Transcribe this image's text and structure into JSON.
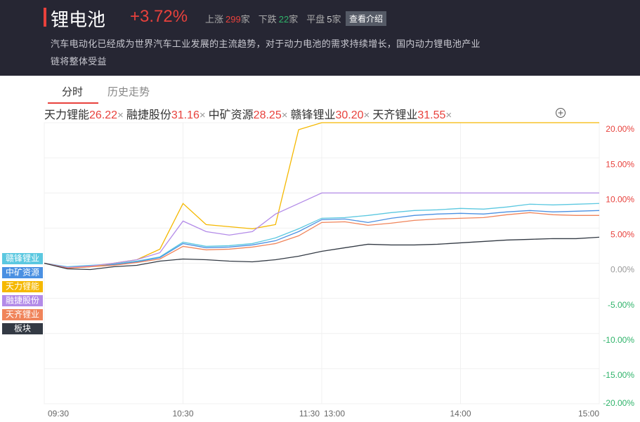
{
  "header": {
    "title": "锂电池",
    "change": "+3.72%",
    "stats": [
      {
        "label": "上涨",
        "count": "299",
        "unit": "家",
        "color": "#e8413c"
      },
      {
        "label": "下跌",
        "count": "22",
        "unit": "家",
        "color": "#2fb36a"
      },
      {
        "label": "平盘",
        "count": "5",
        "unit": "家",
        "color": "#cccccc"
      }
    ],
    "button": "查看介绍",
    "description": "汽车电动化已经成为世界汽车工业发展的主流趋势，对于动力电池的需求持续增长，国内动力锂电池产业链将整体受益"
  },
  "tabs": [
    "分时",
    "历史走势"
  ],
  "chips": [
    {
      "name": "天力锂能",
      "price": "26.22",
      "color": "#f5b800"
    },
    {
      "name": "融捷股份",
      "price": "31.16",
      "color": "#b38be8"
    },
    {
      "name": "中矿资源",
      "price": "28.25",
      "color": "#4a90e2"
    },
    {
      "name": "赣锋锂业",
      "price": "30.20",
      "color": "#5bc8e0"
    },
    {
      "name": "天齐锂业",
      "price": "31.55",
      "color": "#f0845a"
    }
  ],
  "chart_data": {
    "type": "line",
    "x": [
      "09:30",
      "09:40",
      "09:50",
      "10:00",
      "10:10",
      "10:20",
      "10:30",
      "10:40",
      "10:50",
      "11:00",
      "11:10",
      "11:20",
      "11:30",
      "13:10",
      "13:20",
      "13:30",
      "13:40",
      "13:50",
      "14:00",
      "14:10",
      "14:20",
      "14:30",
      "14:40",
      "14:50",
      "15:00"
    ],
    "xticks": [
      "09:30",
      "10:30",
      "11:30",
      "13:00",
      "14:00",
      "15:00"
    ],
    "ylim": [
      -20,
      20
    ],
    "yticks": [
      {
        "value": 20,
        "label": "20.00%"
      },
      {
        "value": 15,
        "label": "15.00%"
      },
      {
        "value": 10,
        "label": "10.00%"
      },
      {
        "value": 5,
        "label": "5.00%"
      },
      {
        "value": 0,
        "label": "0.00%"
      },
      {
        "value": -5,
        "label": "-5.00%"
      },
      {
        "value": -10,
        "label": "-10.00%"
      },
      {
        "value": -15,
        "label": "-15.00%"
      },
      {
        "value": -20,
        "label": "-20.00%"
      }
    ],
    "grid": true,
    "series": [
      {
        "name": "赣锋锂业",
        "color": "#5bc8e0",
        "values": [
          0,
          -0.5,
          -0.3,
          -0.1,
          0.3,
          0.9,
          3.0,
          2.4,
          2.5,
          2.8,
          3.6,
          4.9,
          6.4,
          6.5,
          6.8,
          7.2,
          7.5,
          7.6,
          7.8,
          7.7,
          8.0,
          8.4,
          8.3,
          8.4,
          8.5
        ]
      },
      {
        "name": "中矿资源",
        "color": "#4a90e2",
        "values": [
          0,
          -0.6,
          -0.4,
          -0.2,
          0.2,
          0.8,
          2.8,
          2.2,
          2.3,
          2.6,
          3.2,
          4.5,
          6.2,
          6.3,
          5.8,
          6.4,
          6.8,
          7.0,
          7.1,
          7.0,
          7.3,
          7.5,
          7.3,
          7.4,
          7.5
        ]
      },
      {
        "name": "天力锂能",
        "color": "#f5b800",
        "values": [
          0,
          -0.7,
          -0.5,
          0,
          0.5,
          2.0,
          8.5,
          5.5,
          5.2,
          4.9,
          5.5,
          19.0,
          20,
          20,
          20,
          20,
          20,
          20,
          20,
          20,
          20,
          20,
          20,
          20,
          20
        ]
      },
      {
        "name": "融捷股份",
        "color": "#b38be8",
        "values": [
          0,
          -0.6,
          -0.4,
          0,
          0.5,
          1.5,
          6.0,
          4.5,
          4.0,
          4.5,
          7.0,
          8.5,
          10,
          10,
          10,
          10,
          10,
          10,
          10,
          10,
          10,
          10,
          10,
          10,
          10
        ]
      },
      {
        "name": "天齐锂业",
        "color": "#f0845a",
        "values": [
          0,
          -0.7,
          -0.5,
          -0.3,
          0.1,
          0.6,
          2.4,
          1.9,
          2.0,
          2.3,
          2.8,
          3.9,
          5.8,
          5.9,
          5.4,
          5.7,
          6.1,
          6.3,
          6.4,
          6.5,
          6.9,
          7.2,
          6.9,
          6.8,
          6.8
        ]
      },
      {
        "name": "板块",
        "color": "#333a44",
        "values": [
          0,
          -0.8,
          -0.9,
          -0.5,
          -0.3,
          0.3,
          0.6,
          0.5,
          0.3,
          0.2,
          0.5,
          1.0,
          1.7,
          2.2,
          2.7,
          2.6,
          2.6,
          2.7,
          2.9,
          3.1,
          3.3,
          3.4,
          3.5,
          3.5,
          3.7
        ]
      }
    ]
  }
}
